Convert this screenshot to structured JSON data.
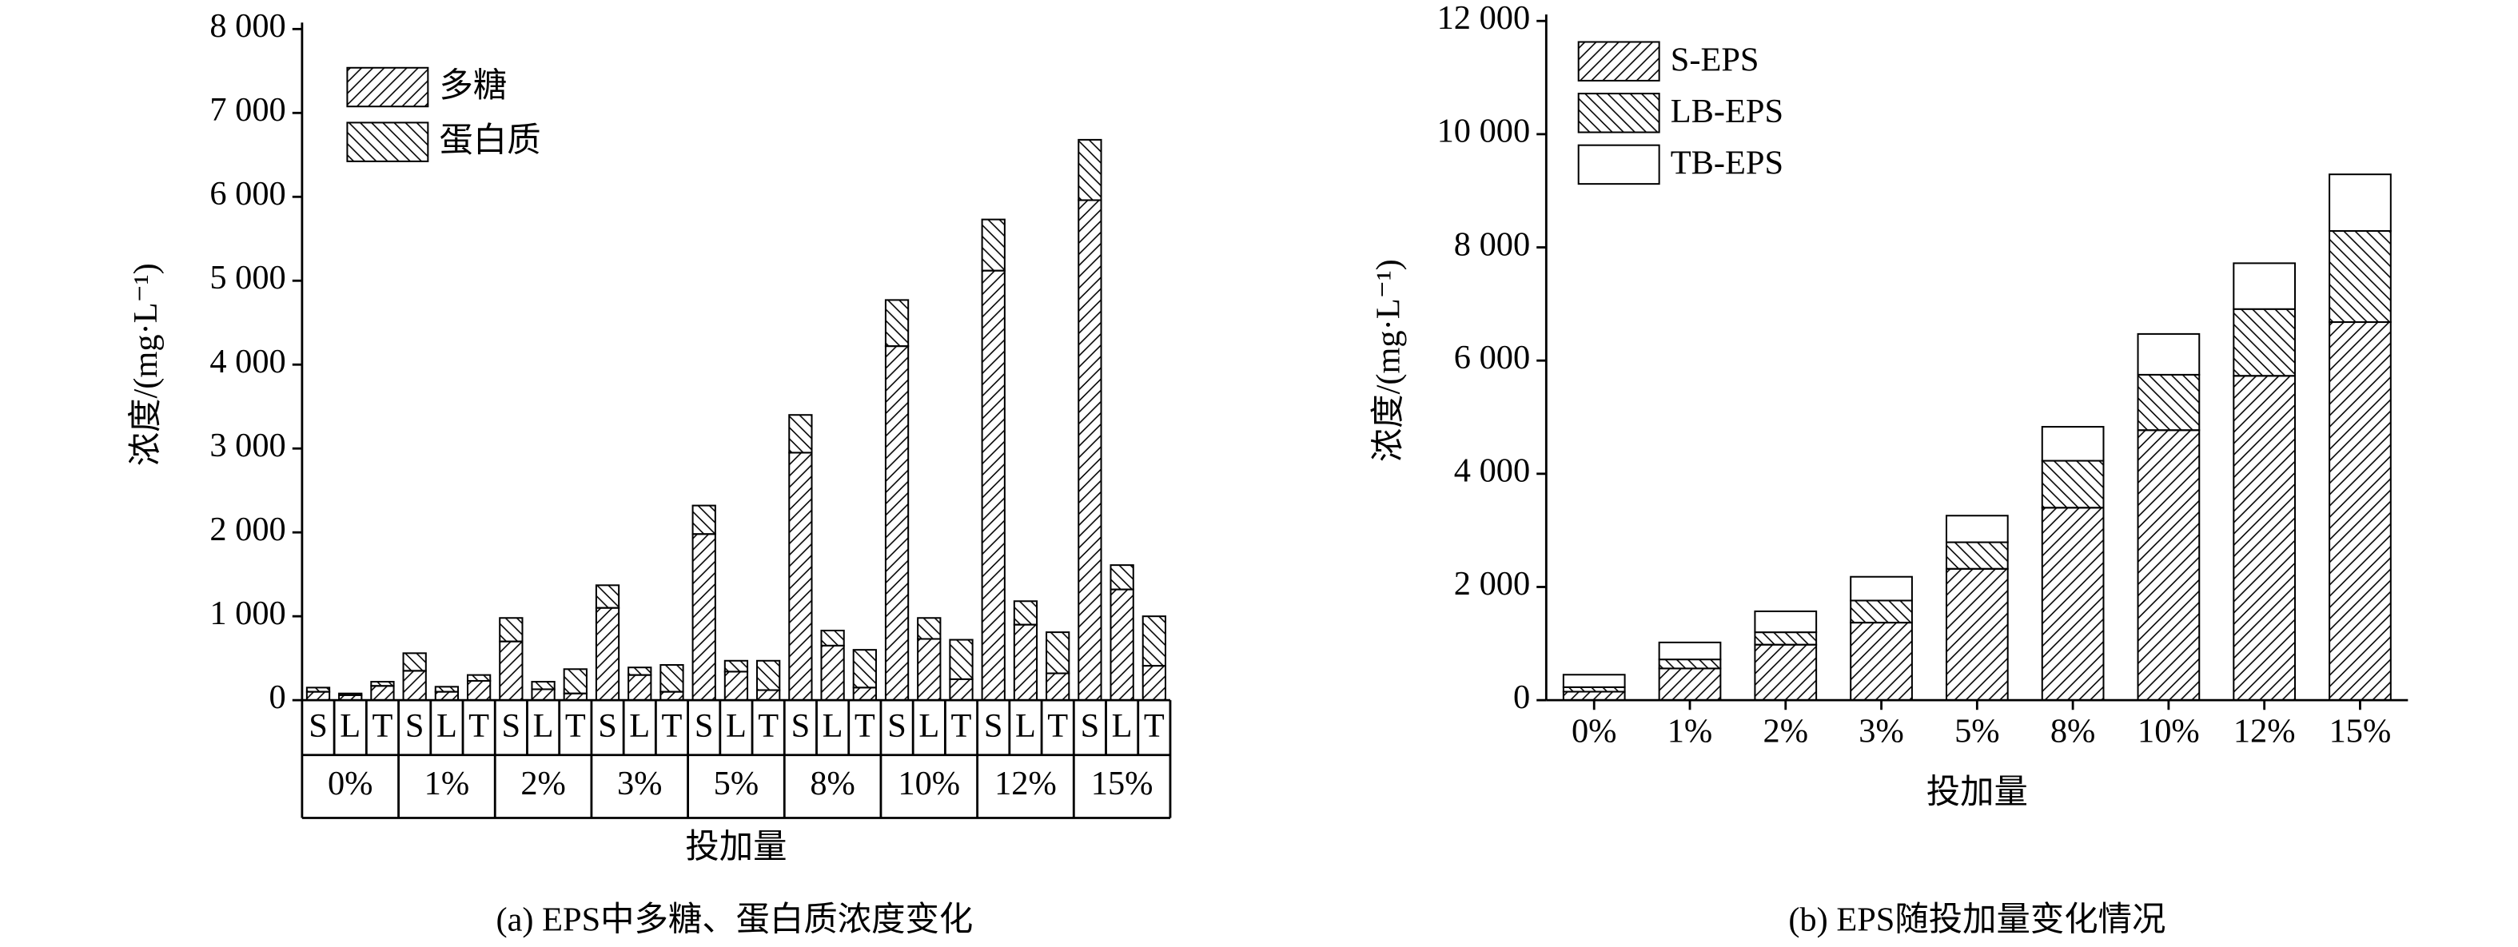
{
  "chart_data": [
    {
      "type": "grouped-stacked-bar",
      "caption": "(a) EPS中多糖、蛋白质浓度变化",
      "y_label": "浓度/(mg·L⁻¹)",
      "x_label": "投加量",
      "categories": [
        "0%",
        "1%",
        "2%",
        "3%",
        "5%",
        "8%",
        "10%",
        "12%",
        "15%"
      ],
      "subcategories": [
        "S",
        "L",
        "T"
      ],
      "series": [
        {
          "name": "多糖",
          "pattern": "forward",
          "color": "#000000",
          "values": [
            [
              100,
              60,
              170
            ],
            [
              350,
              100,
              230
            ],
            [
              700,
              130,
              80
            ],
            [
              1100,
              300,
              100
            ],
            [
              1980,
              340,
              120
            ],
            [
              2950,
              650,
              150
            ],
            [
              4220,
              730,
              250
            ],
            [
              5120,
              900,
              320
            ],
            [
              5960,
              1320,
              410
            ]
          ]
        },
        {
          "name": "蛋白质",
          "pattern": "backward",
          "color": "#000000",
          "values": [
            [
              50,
              20,
              50
            ],
            [
              210,
              60,
              70
            ],
            [
              280,
              90,
              290
            ],
            [
              270,
              90,
              320
            ],
            [
              340,
              130,
              350
            ],
            [
              450,
              180,
              450
            ],
            [
              550,
              250,
              470
            ],
            [
              610,
              280,
              490
            ],
            [
              720,
              290,
              590
            ]
          ]
        }
      ],
      "ylim": [
        0,
        8000
      ],
      "yticks": [
        0,
        {
          "value": 1000,
          "label": "1 000"
        },
        {
          "value": 2000,
          "label": "2 000"
        },
        {
          "value": 3000,
          "label": "3 000"
        },
        {
          "value": 4000,
          "label": "4 000"
        },
        {
          "value": 5000,
          "label": "5 000"
        },
        {
          "value": 6000,
          "label": "6 000"
        },
        {
          "value": 7000,
          "label": "7 000"
        },
        {
          "value": 8000,
          "label": "8 000"
        }
      ],
      "legend": "top-left"
    },
    {
      "type": "stacked-bar",
      "caption": "(b) EPS随投加量变化情况",
      "y_label": "浓度/(mg·L⁻¹)",
      "x_label": "投加量",
      "categories": [
        "0%",
        "1%",
        "2%",
        "3%",
        "5%",
        "8%",
        "10%",
        "12%",
        "15%"
      ],
      "series": [
        {
          "name": "S-EPS",
          "pattern": "forward",
          "color": "#000000",
          "values": [
            150,
            560,
            980,
            1370,
            2320,
            3400,
            4770,
            5730,
            6680
          ]
        },
        {
          "name": "LB-EPS",
          "pattern": "backward",
          "color": "#000000",
          "values": [
            80,
            160,
            220,
            390,
            470,
            830,
            980,
            1180,
            1610
          ]
        },
        {
          "name": "TB-EPS",
          "pattern": "none",
          "color": "#000000",
          "values": [
            220,
            300,
            370,
            420,
            470,
            600,
            720,
            810,
            1000
          ]
        }
      ],
      "ylim": [
        0,
        12000
      ],
      "yticks": [
        0,
        {
          "value": 2000,
          "label": "2 000"
        },
        {
          "value": 4000,
          "label": "4 000"
        },
        {
          "value": 6000,
          "label": "6 000"
        },
        {
          "value": 8000,
          "label": "8 000"
        },
        {
          "value": 10000,
          "label": "10 000"
        },
        {
          "value": 12000,
          "label": "12 000"
        }
      ],
      "legend": "top-left"
    }
  ]
}
